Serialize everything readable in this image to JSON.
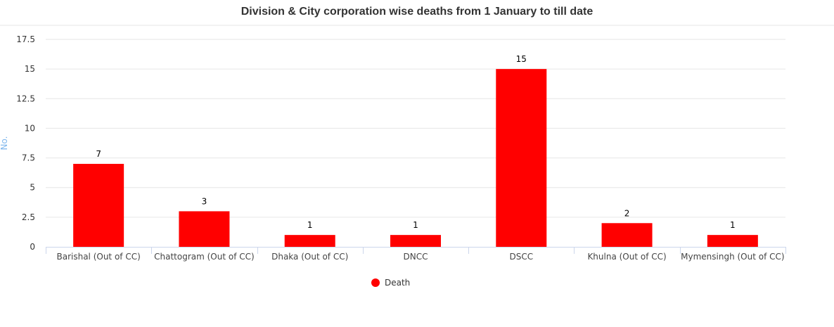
{
  "chart_data": {
    "type": "bar",
    "title": "Division & City corporation wise deaths from 1 January to till date",
    "xlabel": "",
    "ylabel": "No.",
    "ylim": [
      0,
      17.5
    ],
    "yticks": [
      "0",
      "2.5",
      "5",
      "7.5",
      "10",
      "12.5",
      "15",
      "17.5"
    ],
    "ytick_values": [
      0,
      2.5,
      5,
      7.5,
      10,
      12.5,
      15,
      17.5
    ],
    "categories": [
      "Barishal (Out of CC)",
      "Chattogram (Out of CC)",
      "Dhaka (Out of CC)",
      "DNCC",
      "DSCC",
      "Khulna (Out of CC)",
      "Mymensingh (Out of CC)"
    ],
    "series": [
      {
        "name": "Death",
        "color": "#ff0000",
        "values": [
          7,
          3,
          1,
          1,
          15,
          2,
          1
        ],
        "labels": [
          "7",
          "3",
          "1",
          "1",
          "15",
          "2",
          "1"
        ]
      }
    ],
    "grid": true,
    "legend_position": "bottom-center"
  }
}
